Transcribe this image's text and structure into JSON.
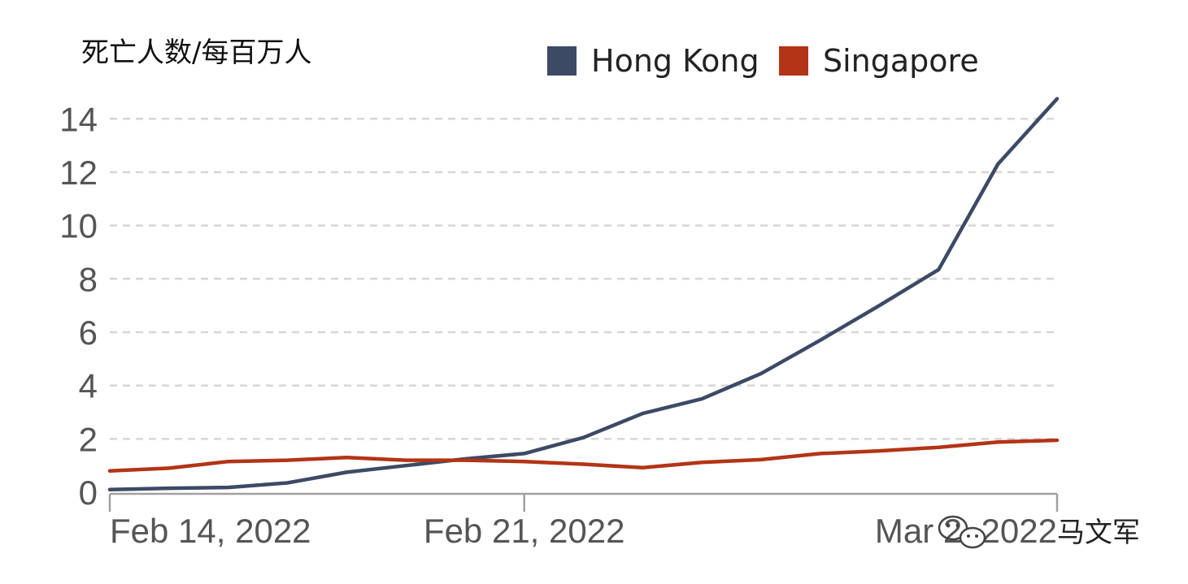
{
  "chart_data": {
    "type": "line",
    "ylabel": "死亡人数/每百万人",
    "ylim": [
      0,
      14.8
    ],
    "yticks": [
      0,
      2,
      4,
      6,
      8,
      10,
      12,
      14
    ],
    "grid": true,
    "legend_position": "top-center",
    "x": [
      "2022-02-14",
      "2022-02-15",
      "2022-02-16",
      "2022-02-17",
      "2022-02-18",
      "2022-02-19",
      "2022-02-20",
      "2022-02-21",
      "2022-02-22",
      "2022-02-23",
      "2022-02-24",
      "2022-02-25",
      "2022-02-26",
      "2022-02-27",
      "2022-02-28",
      "2022-03-01",
      "2022-03-02"
    ],
    "x_range": [
      "2022-02-14",
      "2022-03-02"
    ],
    "xticks": [
      {
        "date": "2022-02-14",
        "label": "Feb 14, 2022"
      },
      {
        "date": "2022-02-21",
        "label": "Feb 21, 2022"
      },
      {
        "date": "2022-03-02",
        "label": "Mar 2, 2022"
      }
    ],
    "series": [
      {
        "name": "Hong Kong",
        "color": "#3d4a66",
        "values": [
          0.1,
          0.15,
          0.18,
          0.35,
          0.75,
          1.0,
          1.25,
          1.45,
          2.05,
          2.95,
          3.5,
          4.45,
          5.7,
          7.0,
          8.35,
          12.3,
          14.75
        ]
      },
      {
        "name": "Singapore",
        "color": "#b33416",
        "values": [
          0.8,
          0.9,
          1.15,
          1.2,
          1.3,
          1.2,
          1.2,
          1.15,
          1.05,
          0.92,
          1.12,
          1.22,
          1.45,
          1.55,
          1.68,
          1.88,
          1.95
        ]
      }
    ]
  },
  "watermark": "马文军"
}
